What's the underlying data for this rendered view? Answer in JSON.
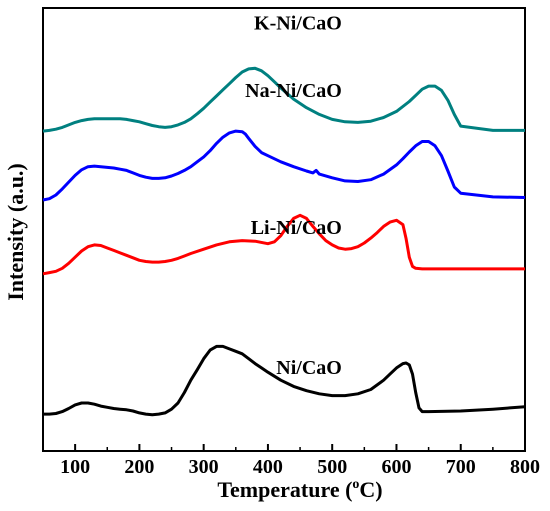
{
  "chart_data": {
    "type": "line",
    "xlabel_main": "Temperature (",
    "xlabel_sup": "o",
    "xlabel_end": "C)",
    "ylabel": "Intensity (a.u.)",
    "xlim": [
      50,
      800
    ],
    "xticks": [
      100,
      200,
      300,
      400,
      500,
      600,
      700,
      800
    ],
    "y_axis_ticks_labeled": false,
    "grid": false,
    "series": [
      {
        "name": "Ni/CaO",
        "color": "#000000",
        "x": [
          50,
          60,
          70,
          80,
          90,
          100,
          110,
          120,
          130,
          140,
          150,
          160,
          170,
          180,
          190,
          200,
          210,
          220,
          230,
          240,
          250,
          260,
          270,
          280,
          290,
          300,
          310,
          320,
          330,
          340,
          350,
          360,
          370,
          380,
          390,
          400,
          420,
          440,
          460,
          480,
          500,
          520,
          540,
          560,
          580,
          590,
          600,
          610,
          615,
          620,
          625,
          630,
          635,
          640,
          650,
          700,
          750,
          800
        ],
        "y": [
          0.0,
          0.0,
          0.1,
          0.4,
          0.9,
          1.5,
          1.8,
          1.8,
          1.6,
          1.3,
          1.1,
          0.9,
          0.8,
          0.7,
          0.5,
          0.2,
          0.0,
          -0.1,
          0.0,
          0.2,
          0.8,
          1.8,
          3.5,
          5.5,
          7.2,
          9.0,
          10.4,
          11.0,
          11.0,
          10.6,
          10.2,
          9.8,
          9.0,
          8.2,
          7.5,
          6.8,
          5.5,
          4.5,
          3.8,
          3.3,
          3.0,
          3.0,
          3.3,
          4.0,
          5.5,
          6.5,
          7.5,
          8.2,
          8.3,
          8.0,
          6.5,
          3.5,
          1.0,
          0.4,
          0.4,
          0.5,
          0.8,
          1.2
        ],
        "label_at": [
          515,
          6.5
        ]
      },
      {
        "name": "Li-Ni/CaO",
        "color": "#ff0000",
        "x": [
          50,
          60,
          70,
          80,
          90,
          100,
          110,
          120,
          130,
          140,
          150,
          160,
          170,
          180,
          190,
          200,
          210,
          220,
          230,
          240,
          250,
          260,
          270,
          280,
          300,
          320,
          340,
          360,
          380,
          400,
          410,
          420,
          430,
          440,
          450,
          460,
          470,
          480,
          490,
          500,
          510,
          520,
          530,
          540,
          550,
          560,
          570,
          580,
          590,
          600,
          610,
          615,
          620,
          625,
          630,
          640,
          650,
          700,
          750,
          800
        ],
        "y": [
          22.8,
          23.0,
          23.2,
          23.7,
          24.5,
          25.5,
          26.5,
          27.2,
          27.5,
          27.4,
          27.0,
          26.6,
          26.2,
          25.8,
          25.4,
          25.0,
          24.8,
          24.7,
          24.7,
          24.8,
          25.0,
          25.3,
          25.7,
          26.1,
          26.8,
          27.5,
          28.0,
          28.2,
          28.1,
          27.7,
          28.0,
          29.0,
          30.5,
          31.8,
          32.3,
          31.8,
          30.5,
          29.3,
          28.2,
          27.5,
          27.0,
          26.8,
          26.9,
          27.2,
          27.8,
          28.6,
          29.5,
          30.5,
          31.2,
          31.5,
          30.8,
          28.5,
          25.5,
          24.0,
          23.7,
          23.6,
          23.6,
          23.6,
          23.6,
          23.6
        ],
        "label_at": [
          515,
          29.3
        ]
      },
      {
        "name": "Na-Ni/CaO",
        "color": "#0000ff",
        "x": [
          50,
          60,
          70,
          80,
          90,
          100,
          110,
          120,
          130,
          140,
          150,
          160,
          170,
          180,
          190,
          200,
          210,
          220,
          230,
          240,
          250,
          260,
          270,
          280,
          290,
          300,
          310,
          320,
          330,
          340,
          350,
          360,
          365,
          370,
          380,
          390,
          400,
          420,
          440,
          460,
          470,
          475,
          480,
          500,
          520,
          540,
          560,
          580,
          600,
          610,
          620,
          630,
          640,
          650,
          660,
          670,
          680,
          690,
          700,
          750,
          800
        ],
        "y": [
          34.8,
          35.0,
          35.6,
          36.6,
          37.7,
          38.8,
          39.7,
          40.2,
          40.3,
          40.2,
          40.1,
          40.0,
          39.8,
          39.6,
          39.2,
          38.8,
          38.5,
          38.3,
          38.3,
          38.4,
          38.7,
          39.1,
          39.6,
          40.2,
          41.0,
          41.8,
          42.8,
          44.0,
          45.0,
          45.7,
          46.0,
          45.9,
          45.5,
          44.8,
          43.5,
          42.5,
          42.0,
          41.0,
          40.2,
          39.5,
          39.2,
          39.6,
          39.0,
          38.4,
          37.9,
          37.8,
          38.1,
          39.0,
          40.5,
          41.5,
          42.6,
          43.6,
          44.3,
          44.3,
          43.6,
          42.0,
          39.5,
          36.9,
          35.9,
          35.3,
          35.2
        ],
        "label_at": [
          515,
          51.5
        ]
      },
      {
        "name": "K-Ni/CaO",
        "color": "#008080",
        "x": [
          50,
          60,
          70,
          80,
          90,
          100,
          110,
          120,
          130,
          140,
          150,
          160,
          170,
          180,
          190,
          200,
          210,
          220,
          230,
          240,
          250,
          260,
          270,
          280,
          290,
          300,
          310,
          320,
          330,
          340,
          350,
          360,
          370,
          380,
          390,
          400,
          410,
          420,
          440,
          460,
          480,
          500,
          520,
          540,
          560,
          580,
          600,
          620,
          630,
          640,
          650,
          660,
          670,
          680,
          690,
          700,
          750,
          800
        ],
        "y": [
          46.0,
          46.1,
          46.3,
          46.6,
          47.0,
          47.4,
          47.7,
          47.9,
          48.0,
          48.0,
          48.0,
          48.0,
          48.0,
          47.9,
          47.7,
          47.5,
          47.2,
          46.9,
          46.7,
          46.6,
          46.7,
          47.0,
          47.4,
          48.0,
          48.8,
          49.7,
          50.7,
          51.7,
          52.7,
          53.7,
          54.7,
          55.6,
          56.1,
          56.2,
          55.8,
          55.0,
          54.0,
          53.0,
          51.2,
          49.8,
          48.7,
          47.9,
          47.5,
          47.4,
          47.6,
          48.2,
          49.2,
          50.8,
          51.8,
          52.8,
          53.3,
          53.3,
          52.6,
          51.0,
          48.7,
          46.8,
          46.1,
          46.1
        ],
        "label_at": [
          515,
          62.5
        ]
      }
    ]
  }
}
